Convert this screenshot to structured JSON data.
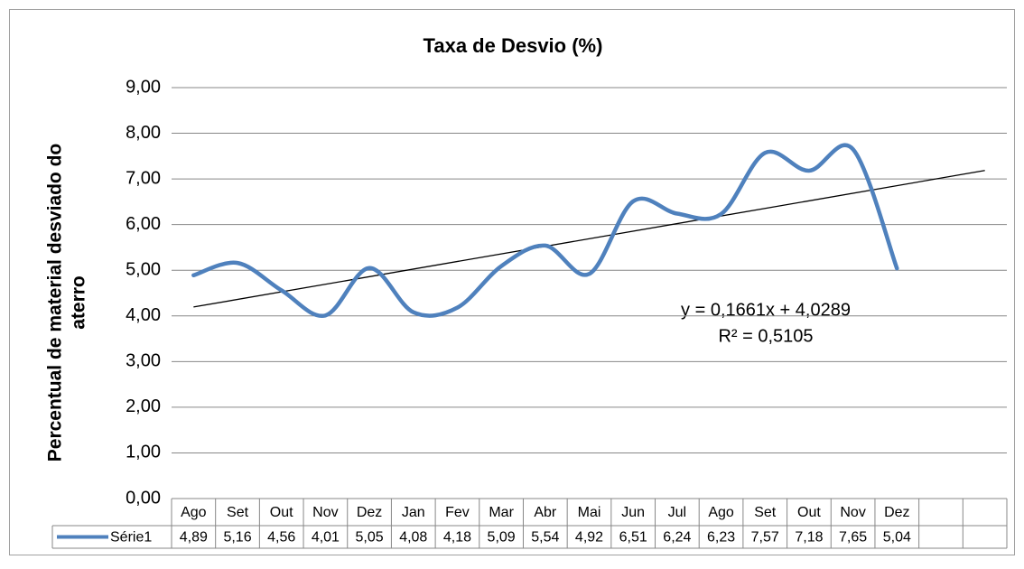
{
  "chart_data": {
    "type": "line",
    "title": "Taxa de Desvio  (%)",
    "y_label": [
      "Percentual de material desviado do",
      "aterro"
    ],
    "categories": [
      "Ago",
      "Set",
      "Out",
      "Nov",
      "Dez",
      "Jan",
      "Fev",
      "Mar",
      "Abr",
      "Mai",
      "Jun",
      "Jul",
      "Ago",
      "Set",
      "Out",
      "Nov",
      "Dez",
      null,
      null
    ],
    "series": [
      {
        "name": "Série1",
        "color": "#4f81bd",
        "values": [
          4.89,
          5.16,
          4.56,
          4.01,
          5.05,
          4.08,
          4.18,
          5.09,
          5.54,
          4.92,
          6.51,
          6.24,
          6.23,
          7.57,
          7.18,
          7.65,
          5.04,
          null,
          null
        ],
        "value_labels": [
          "4,89",
          "5,16",
          "4,56",
          "4,01",
          "5,05",
          "4,08",
          "4,18",
          "5,09",
          "5,54",
          "4,92",
          "6,51",
          "6,24",
          "6,23",
          "7,57",
          "7,18",
          "7,65",
          "5,04",
          null,
          null
        ]
      }
    ],
    "trendline": {
      "slope": 0.1661,
      "intercept": 4.0289,
      "color": "#000000",
      "equation": "y = 0,1661x + 4,0289",
      "r2": 0.5105,
      "r2_label": "R² = 0,5105"
    },
    "ylim": [
      0,
      9
    ],
    "yticks": [
      {
        "value": 0,
        "label": "0,00"
      },
      {
        "value": 1,
        "label": "1,00"
      },
      {
        "value": 2,
        "label": "2,00"
      },
      {
        "value": 3,
        "label": "3,00"
      },
      {
        "value": 4,
        "label": "4,00"
      },
      {
        "value": 5,
        "label": "5,00"
      },
      {
        "value": 6,
        "label": "6,00"
      },
      {
        "value": 7,
        "label": "7,00"
      },
      {
        "value": 8,
        "label": "8,00"
      },
      {
        "value": 9,
        "label": "9,00"
      }
    ],
    "grid": true
  }
}
